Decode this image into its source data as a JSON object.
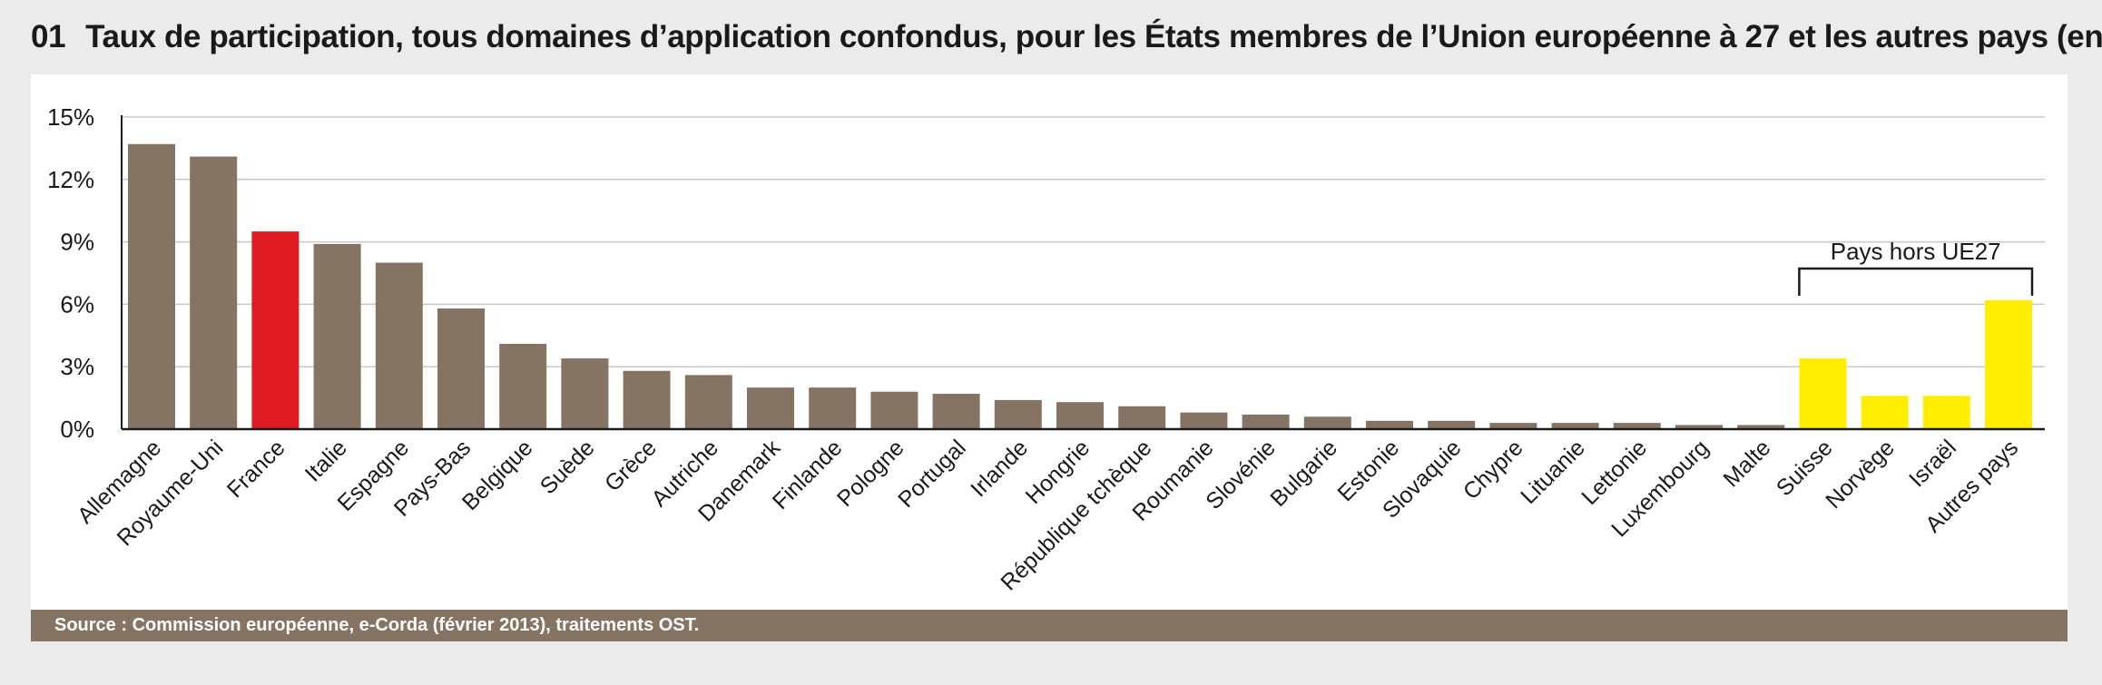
{
  "title": {
    "number": "01",
    "text": "Taux de participation, tous domaines d’application confondus, pour les États membres de l’Union européenne à 27 et les autres pays (en %)"
  },
  "source": "Source : Commission européenne, e-Corda (février 2013), traitements OST.",
  "colors": {
    "default": "#857464",
    "highlight": "#e01b24",
    "non_eu": "#ffee00",
    "grid": "#c8c8c8",
    "axis": "#1a1a1a"
  },
  "chart_data": {
    "type": "bar",
    "title": "",
    "xlabel": "",
    "ylabel": "",
    "ylim": [
      0,
      15
    ],
    "yticks": [
      0,
      3,
      6,
      9,
      12,
      15
    ],
    "ytick_labels": [
      "0%",
      "3%",
      "6%",
      "9%",
      "12%",
      "15%"
    ],
    "grid": true,
    "categories": [
      "Allemagne",
      "Royaume-Uni",
      "France",
      "Italie",
      "Espagne",
      "Pays-Bas",
      "Belgique",
      "Suède",
      "Grèce",
      "Autriche",
      "Danemark",
      "Finlande",
      "Pologne",
      "Portugal",
      "Irlande",
      "Hongrie",
      "République tchèque",
      "Roumanie",
      "Slovénie",
      "Bulgarie",
      "Estonie",
      "Slovaquie",
      "Chypre",
      "Lituanie",
      "Lettonie",
      "Luxembourg",
      "Malte",
      "Suisse",
      "Norvège",
      "Israël",
      "Autres pays"
    ],
    "values": [
      13.7,
      13.1,
      9.5,
      8.9,
      8.0,
      5.8,
      4.1,
      3.4,
      2.8,
      2.6,
      2.0,
      2.0,
      1.8,
      1.7,
      1.4,
      1.3,
      1.1,
      0.8,
      0.7,
      0.6,
      0.4,
      0.4,
      0.3,
      0.3,
      0.3,
      0.2,
      0.2,
      3.4,
      1.6,
      1.6,
      6.2
    ],
    "groups": [
      "eu",
      "eu",
      "highlight",
      "eu",
      "eu",
      "eu",
      "eu",
      "eu",
      "eu",
      "eu",
      "eu",
      "eu",
      "eu",
      "eu",
      "eu",
      "eu",
      "eu",
      "eu",
      "eu",
      "eu",
      "eu",
      "eu",
      "eu",
      "eu",
      "eu",
      "eu",
      "eu",
      "non_eu",
      "non_eu",
      "non_eu",
      "non_eu"
    ],
    "annotations": [
      {
        "text": "Pays hors UE27",
        "type": "bracket",
        "from_category": "Suisse",
        "to_category": "Autres pays"
      }
    ]
  }
}
